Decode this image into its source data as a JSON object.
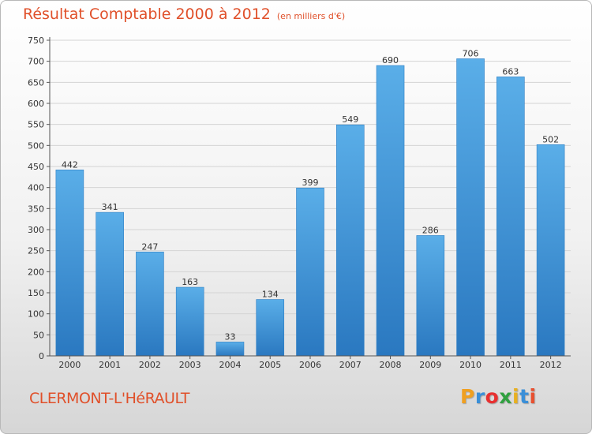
{
  "header": {
    "title": "Résultat Comptable 2000 à 2012",
    "unit": "(en milliers d'€)"
  },
  "footer": {
    "city": "CLERMONT-L'HéRAULT",
    "brand_letters": [
      "P",
      "r",
      "o",
      "x",
      "i",
      "t",
      "i"
    ],
    "brand_colors": [
      "#f0a020",
      "#3a8fd8",
      "#e83030",
      "#30a040",
      "#e8b020",
      "#3a8fd8",
      "#e85030"
    ]
  },
  "colors": {
    "bar_light": "#5aaee8",
    "bar_dark": "#2a78c0",
    "title": "#e0502a",
    "grid": "#d4d4d4"
  },
  "chart_data": {
    "type": "bar",
    "categories": [
      "2000",
      "2001",
      "2002",
      "2003",
      "2004",
      "2005",
      "2006",
      "2007",
      "2008",
      "2009",
      "2010",
      "2011",
      "2012"
    ],
    "values": [
      442,
      341,
      247,
      163,
      33,
      134,
      399,
      549,
      690,
      286,
      706,
      663,
      502
    ],
    "yticks": [
      0,
      50,
      100,
      150,
      200,
      250,
      300,
      350,
      400,
      450,
      500,
      550,
      600,
      650,
      700,
      750
    ],
    "ylim": [
      0,
      750
    ],
    "grid": true,
    "legend": "none"
  }
}
